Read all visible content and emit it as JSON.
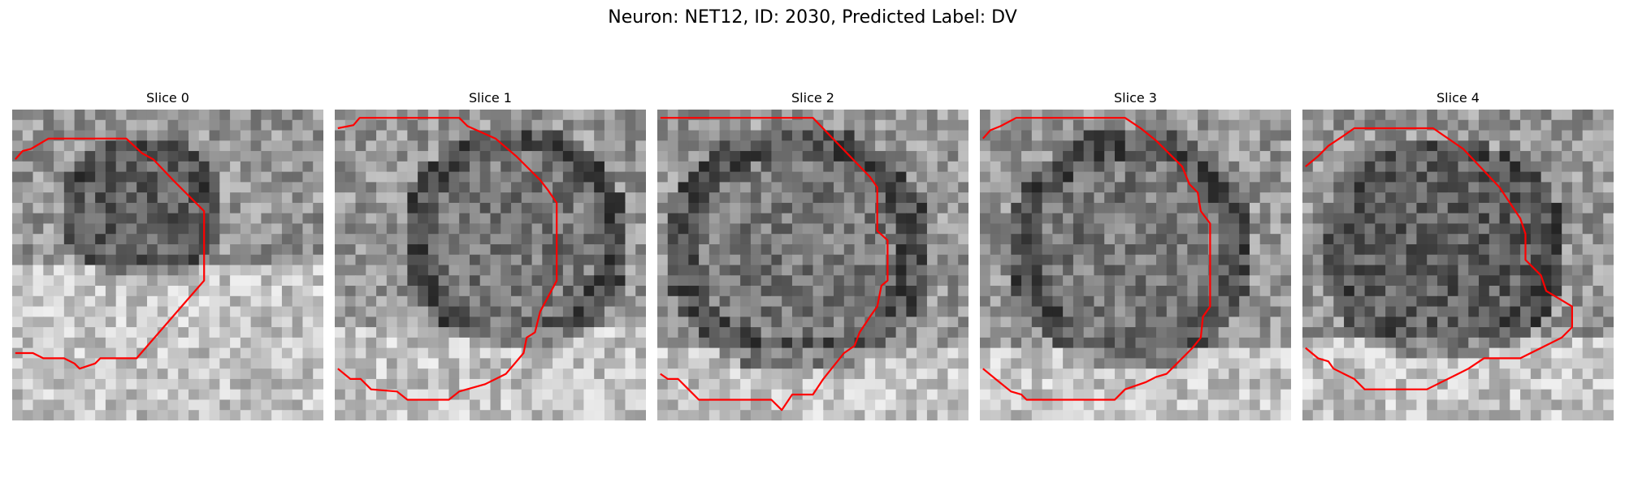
{
  "figure": {
    "title": "Neuron: NET12, ID: 2030, Predicted Label: DV"
  },
  "colors": {
    "contour": "#ff0000",
    "background": "#ffffff"
  },
  "slices": [
    {
      "title": "Slice 0",
      "seed": 11
    },
    {
      "title": "Slice 1",
      "seed": 23
    },
    {
      "title": "Slice 2",
      "seed": 37
    },
    {
      "title": "Slice 3",
      "seed": 51
    },
    {
      "title": "Slice 4",
      "seed": 67
    }
  ]
}
